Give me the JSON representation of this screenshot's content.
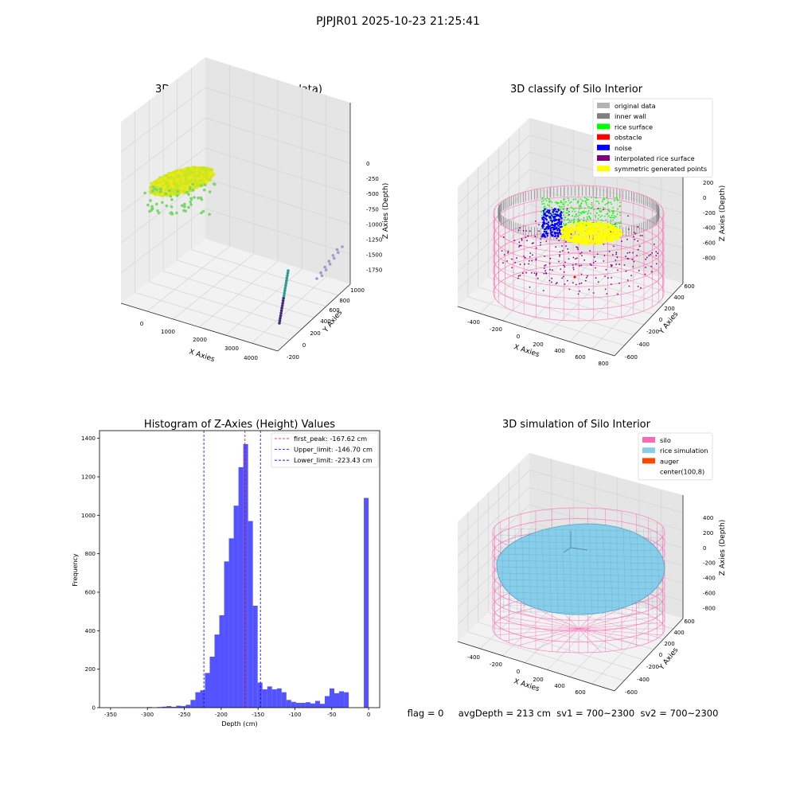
{
  "suptitle": "PJPJR01 2025-10-23 21:25:41",
  "status_line": "flag = 0     avgDepth = 213 cm  sv1 = 700~2300  sv2 = 700~2300",
  "chart_data": [
    {
      "type": "scatter3d",
      "title": "3D Plot of Silo Interior(row data)",
      "xlabel": "X Axies",
      "ylabel": "Y Axies",
      "zlabel": "Z Axies (Depth)",
      "x_ticks": [
        "0",
        "1000",
        "2000",
        "3000",
        "4000"
      ],
      "y_ticks": [
        "-200",
        "0",
        "200",
        "400",
        "600",
        "800",
        "1000"
      ],
      "z_ticks": [
        "0",
        "-250",
        "-500",
        "-750",
        "-1000",
        "-1250",
        "-1500",
        "-1750"
      ],
      "xlim": [
        -500,
        4500
      ],
      "ylim": [
        -300,
        1100
      ],
      "zlim": [
        -1800,
        100
      ],
      "colors": {
        "surface": "#c8e61e",
        "surface_core": "#f0e61e",
        "scatter": "#7ad66a",
        "column_low": "#472c7a",
        "column_high": "#2a9d8f",
        "column_light": "#a09ac8"
      }
    },
    {
      "type": "scatter3d",
      "title": "3D classify of Silo Interior",
      "xlabel": "X Axies",
      "ylabel": "Y Axies",
      "zlabel": "Z Axies (Depth)",
      "x_ticks": [
        "-400",
        "-200",
        "0",
        "200",
        "400",
        "600",
        "800"
      ],
      "y_ticks": [
        "-600",
        "-400",
        "-200",
        "0",
        "200",
        "400",
        "600"
      ],
      "z_ticks": [
        "200",
        "0",
        "-200",
        "-400",
        "-600",
        "-800"
      ],
      "legend_position": "top-right",
      "legend": [
        {
          "label": "original data",
          "color": "#b3b3b3"
        },
        {
          "label": "inner wall",
          "color": "#808080"
        },
        {
          "label": "rice surface",
          "color": "#00ff00"
        },
        {
          "label": "obstacle",
          "color": "#ff0000"
        },
        {
          "label": "noise",
          "color": "#0000ff"
        },
        {
          "label": "interpolated rice surface",
          "color": "#800080"
        },
        {
          "label": "symmetric generated points",
          "color": "#ffff00"
        }
      ]
    },
    {
      "type": "bar",
      "title": "Histogram of Z-Axies (Height) Values",
      "xlabel": "Depth (cm)",
      "ylabel": "Frequency",
      "xlim": [
        -365,
        15
      ],
      "ylim": [
        0,
        1440
      ],
      "x_ticks": [
        -350,
        -300,
        -250,
        -200,
        -150,
        -100,
        -50,
        0
      ],
      "y_ticks": [
        0,
        200,
        400,
        600,
        800,
        1000,
        1200,
        1400
      ],
      "bar_color": "#4a4aff",
      "bin_width": 6.5,
      "bins": [
        [
          -300,
          3
        ],
        [
          -293.5,
          0
        ],
        [
          -287,
          3
        ],
        [
          -280.5,
          5
        ],
        [
          -274,
          8
        ],
        [
          -267.5,
          4
        ],
        [
          -261,
          10
        ],
        [
          -254.5,
          8
        ],
        [
          -248,
          15
        ],
        [
          -241.5,
          40
        ],
        [
          -235,
          80
        ],
        [
          -228.5,
          90
        ],
        [
          -222,
          180
        ],
        [
          -215.5,
          265
        ],
        [
          -209,
          380
        ],
        [
          -202.5,
          480
        ],
        [
          -196,
          760
        ],
        [
          -189.5,
          880
        ],
        [
          -183,
          1050
        ],
        [
          -176.5,
          1250
        ],
        [
          -170,
          1370
        ],
        [
          -163.5,
          970
        ],
        [
          -157,
          530
        ],
        [
          -150.5,
          130
        ],
        [
          -144,
          95
        ],
        [
          -137.5,
          110
        ],
        [
          -131,
          95
        ],
        [
          -124.5,
          100
        ],
        [
          -118,
          80
        ],
        [
          -111.5,
          40
        ],
        [
          -105,
          30
        ],
        [
          -98.5,
          25
        ],
        [
          -92,
          25
        ],
        [
          -85.5,
          28
        ],
        [
          -79,
          22
        ],
        [
          -72.5,
          35
        ],
        [
          -66,
          20
        ],
        [
          -59.5,
          60
        ],
        [
          -53,
          100
        ],
        [
          -46.5,
          75
        ],
        [
          -40,
          85
        ],
        [
          -33.5,
          80
        ],
        [
          -6.5,
          1090
        ]
      ],
      "vlines": [
        {
          "label": "first_peak: -167.62 cm",
          "x": -167.62,
          "color": "#ff0000"
        },
        {
          "label": "Upper_limit: -146.70 cm",
          "x": -146.7,
          "color": "#0000ff"
        },
        {
          "label": "Lower_limit: -223.43 cm",
          "x": -223.43,
          "color": "#0000ff"
        }
      ],
      "legend_position": "top-right"
    },
    {
      "type": "surface3d",
      "title": "3D simulation of Silo Interior",
      "xlabel": "X Axies",
      "ylabel": "Y Axies",
      "zlabel": "Z Axies (Depth)",
      "x_ticks": [
        "-400",
        "-200",
        "0",
        "200",
        "400",
        "600"
      ],
      "y_ticks": [
        "-600",
        "-400",
        "-200",
        "0",
        "200",
        "400",
        "600"
      ],
      "z_ticks": [
        "400",
        "200",
        "0",
        "-200",
        "-400",
        "-600",
        "-800"
      ],
      "legend_position": "top-right",
      "legend": [
        {
          "label": "silo",
          "color": "#ff69b4"
        },
        {
          "label": "rice simulation",
          "color": "#87ceeb"
        },
        {
          "label": "auger",
          "color": "#ff4500"
        },
        {
          "label": "center(100,8)",
          "color": "#ffffff"
        }
      ]
    }
  ]
}
